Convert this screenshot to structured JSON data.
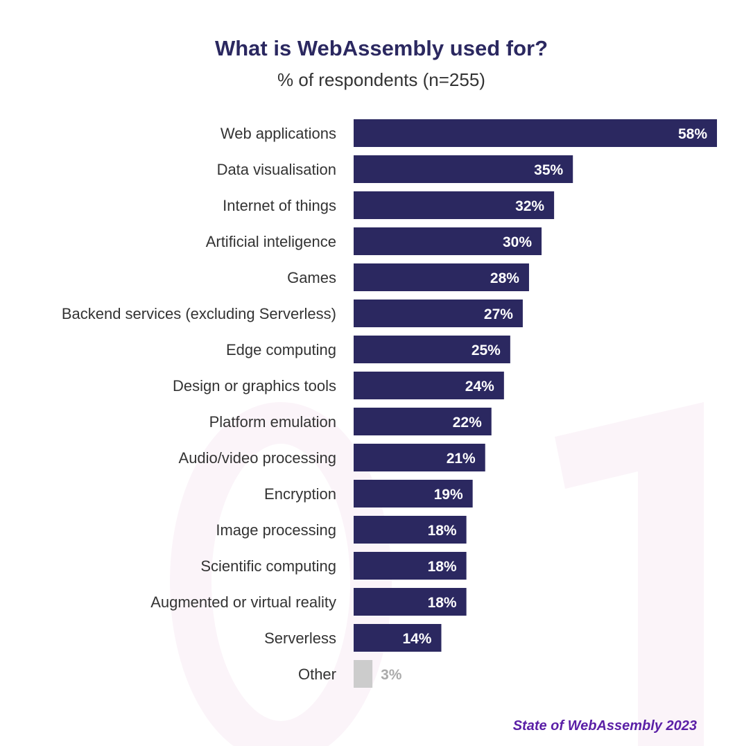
{
  "chart_data": {
    "type": "bar",
    "orientation": "horizontal",
    "title": "What is WebAssembly used for?",
    "subtitle": "% of respondents (n=255)",
    "categories": [
      "Web applications",
      "Data visualisation",
      "Internet of things",
      "Artificial inteligence",
      "Games",
      "Backend services (excluding Serverless)",
      "Edge computing",
      "Design or graphics tools",
      "Platform emulation",
      "Audio/video processing",
      "Encryption",
      "Image processing",
      "Scientific computing",
      "Augmented or virtual reality",
      "Serverless",
      "Other"
    ],
    "values": [
      58,
      35,
      32,
      30,
      28,
      27,
      25,
      24,
      22,
      21,
      19,
      18,
      18,
      18,
      14,
      3
    ],
    "value_labels": [
      "58%",
      "35%",
      "32%",
      "30%",
      "28%",
      "27%",
      "25%",
      "24%",
      "22%",
      "21%",
      "19%",
      "18%",
      "18%",
      "18%",
      "14%",
      "3%"
    ],
    "xlim": [
      0,
      58
    ],
    "colors": {
      "bar": "#2b2860",
      "other_bar": "#cccccc",
      "other_label": "#aaaaaa",
      "watermark": "#fbf4f9"
    }
  },
  "footer": "State of WebAssembly 2023"
}
